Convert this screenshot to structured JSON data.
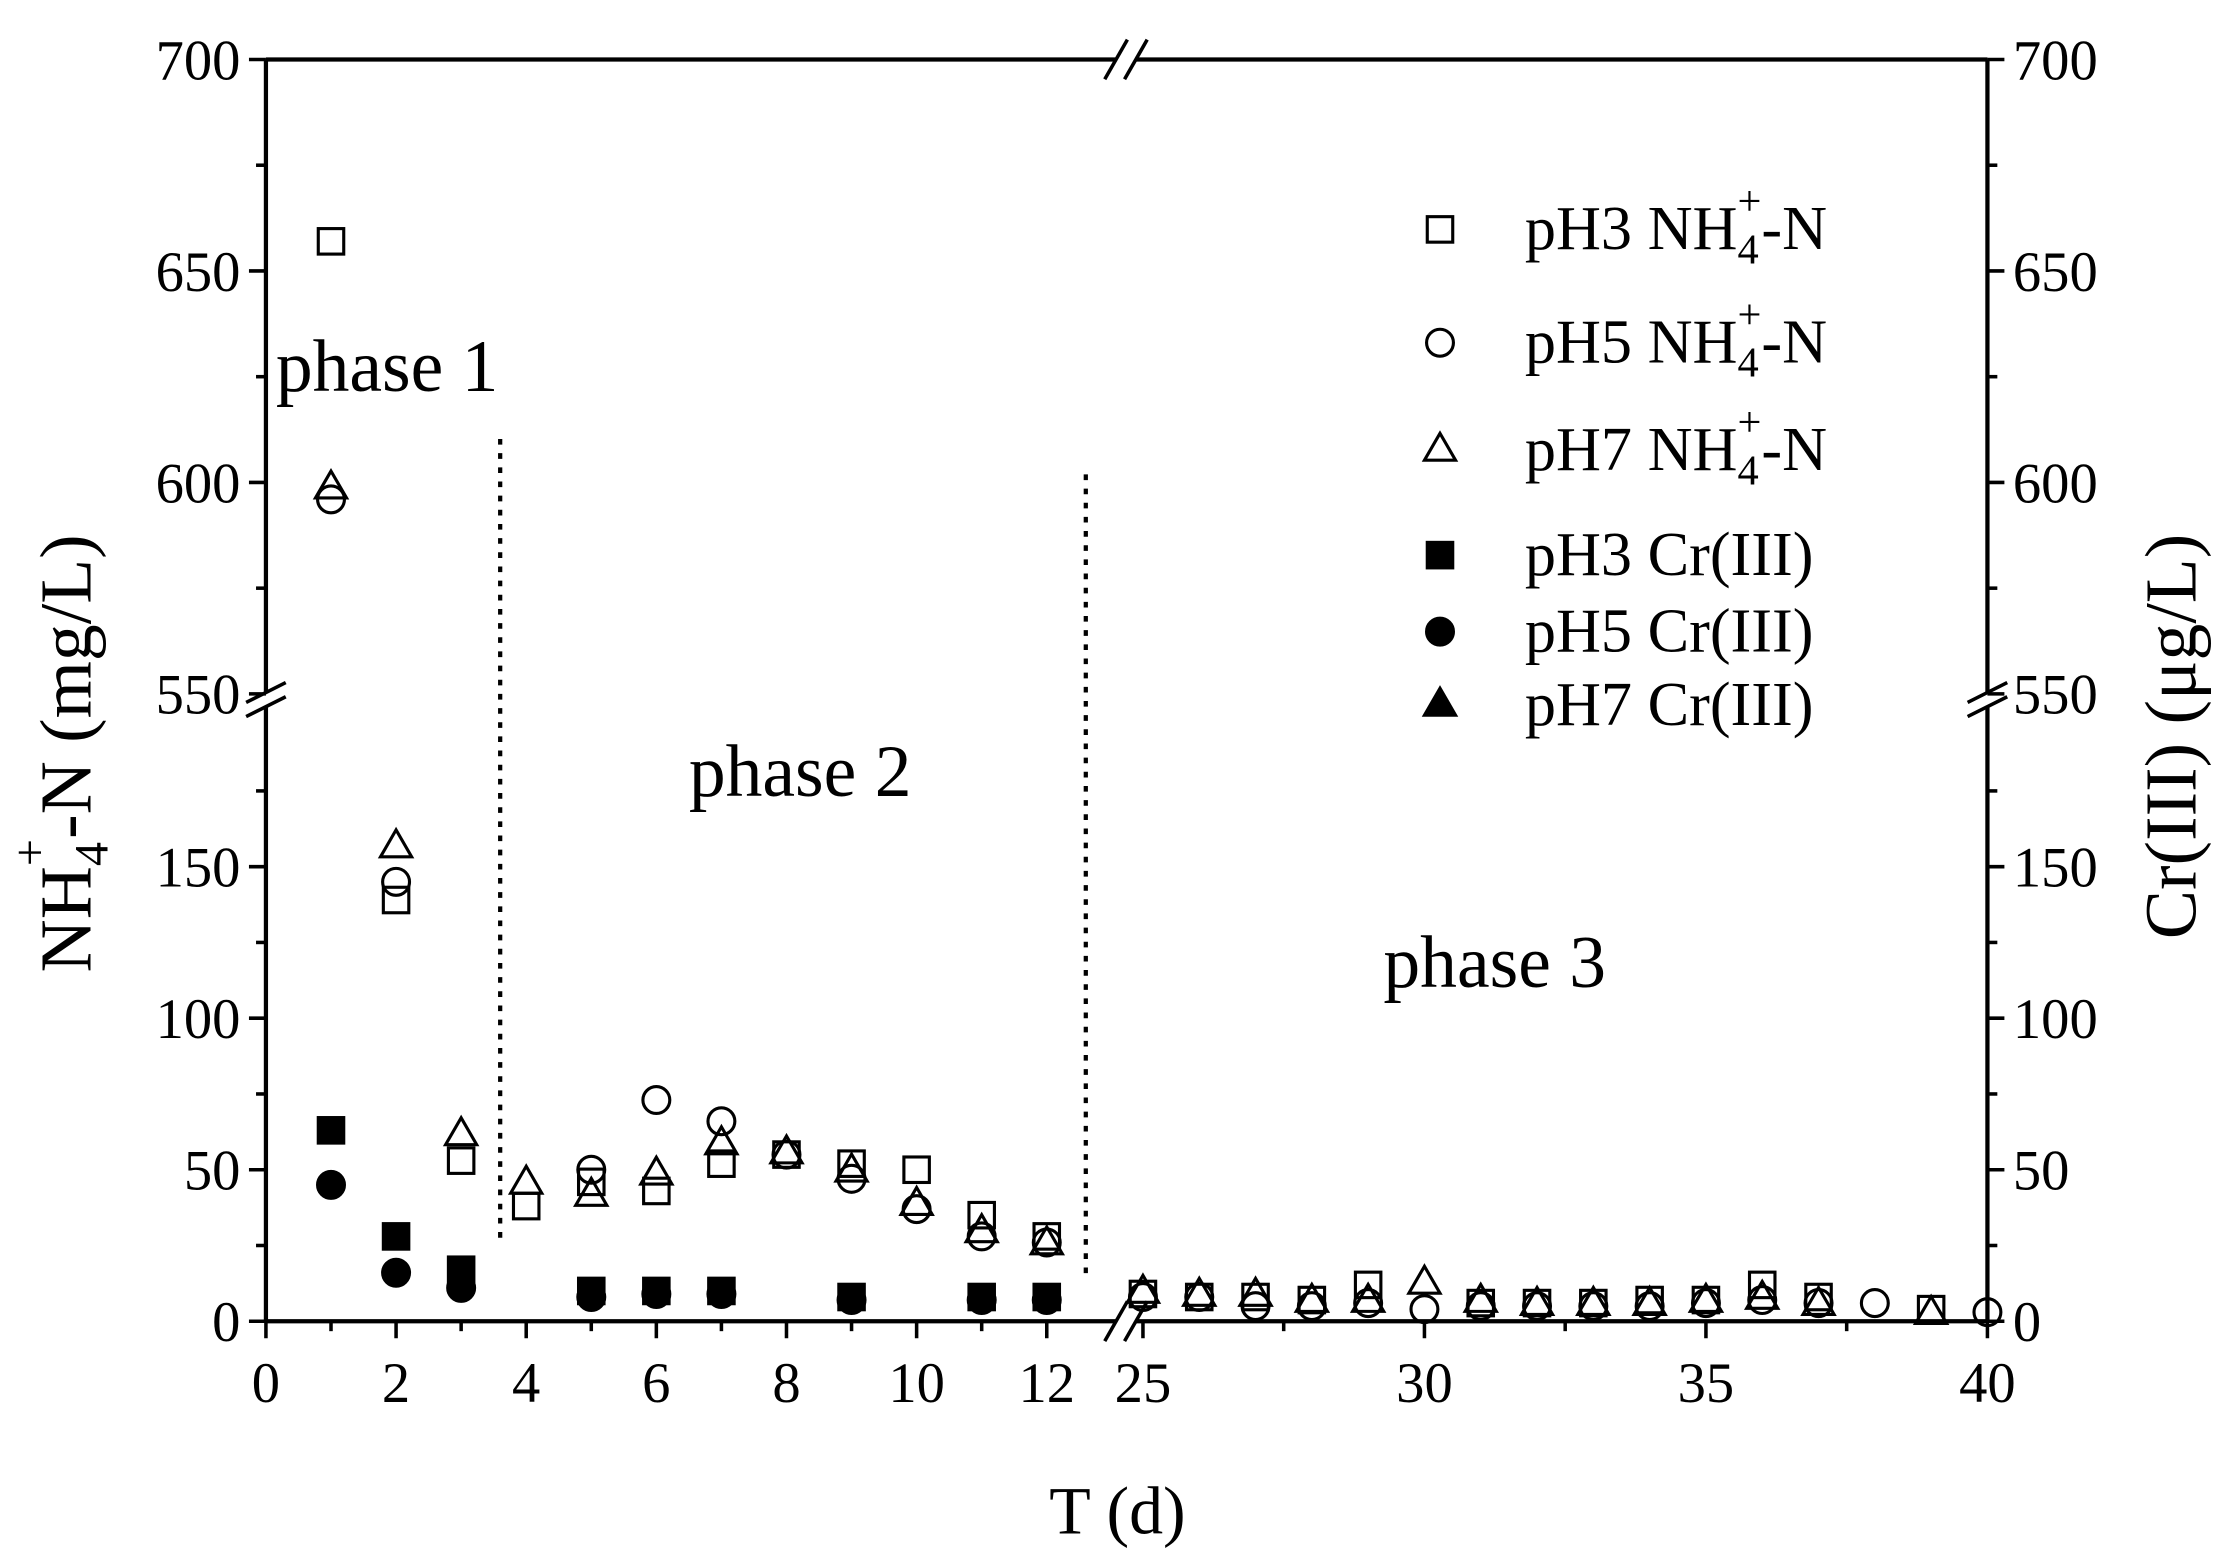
{
  "chart_data": {
    "type": "scatter",
    "x_axis": {
      "label": "T (d)",
      "segments": [
        {
          "range": [
            0,
            13
          ],
          "ticks": [
            0,
            2,
            4,
            6,
            8,
            10,
            12
          ],
          "minor_step": 1
        },
        {
          "range": [
            25,
            40
          ],
          "ticks": [
            25,
            30,
            35,
            40
          ],
          "minor_step": 2.5
        }
      ]
    },
    "y_axis_left": {
      "label": {
        "pre": "NH",
        "sub": "4",
        "sup": "+",
        "post": "-N (mg/L)"
      },
      "segments": [
        {
          "range": [
            0,
            200
          ],
          "ticks": [
            0,
            50,
            100,
            150
          ],
          "minor_step": 25
        },
        {
          "range": [
            550,
            700
          ],
          "ticks": [
            550,
            600,
            650,
            700
          ],
          "minor_step": 25
        }
      ]
    },
    "y_axis_right": {
      "label": "Cr(III) (μg/L)",
      "segments": [
        {
          "range": [
            0,
            200
          ],
          "ticks": [
            0,
            50,
            100,
            150
          ],
          "minor_step": 25
        },
        {
          "range": [
            550,
            700
          ],
          "ticks": [
            550,
            600,
            650,
            700
          ],
          "minor_step": 25
        }
      ]
    },
    "annotations": [
      "phase 1",
      "phase 2",
      "phase 3"
    ],
    "phase_dividers_x": [
      3.6,
      12.6
    ],
    "legend_placement": "top-right",
    "grid": false,
    "colors": {
      "ink": "#000000",
      "background": "#ffffff"
    },
    "series": [
      {
        "label": {
          "pre": "pH3 NH",
          "sub": "4",
          "sup": "+",
          "post": "-N"
        },
        "marker": "open-square-icon",
        "x": [
          1,
          2,
          3,
          4,
          5,
          6,
          7,
          8,
          9,
          10,
          11,
          12,
          25,
          26,
          27,
          28,
          29,
          31,
          32,
          33,
          34,
          35,
          36,
          37,
          39
        ],
        "y": [
          657,
          139,
          53,
          38,
          46,
          43,
          52,
          55,
          52,
          50,
          35,
          28,
          9,
          8,
          8,
          7,
          12,
          6,
          6,
          6,
          7,
          7,
          12,
          8,
          4
        ]
      },
      {
        "label": {
          "pre": "pH5 NH",
          "sub": "4",
          "sup": "+",
          "post": "-N"
        },
        "marker": "open-circle-icon",
        "x": [
          1,
          2,
          5,
          6,
          7,
          8,
          9,
          10,
          11,
          12,
          25,
          26,
          27,
          28,
          29,
          30,
          31,
          32,
          33,
          34,
          35,
          36,
          37,
          38,
          40
        ],
        "y": [
          596,
          145,
          50,
          73,
          66,
          55,
          47,
          37,
          28,
          26,
          8,
          8,
          5,
          5,
          6,
          4,
          5,
          5,
          5,
          5,
          6,
          7,
          6,
          6,
          3
        ]
      },
      {
        "label": {
          "pre": "pH7 NH",
          "sub": "4",
          "sup": "+",
          "post": "-N"
        },
        "marker": "open-triangle-icon",
        "x": [
          1,
          2,
          3,
          4,
          5,
          6,
          7,
          8,
          9,
          10,
          11,
          12,
          25,
          26,
          27,
          28,
          29,
          30,
          31,
          32,
          33,
          34,
          35,
          36,
          37,
          39
        ],
        "y": [
          599,
          157,
          62,
          46,
          42,
          49,
          59,
          56,
          50,
          39,
          30,
          26,
          10,
          9,
          9,
          7,
          7,
          13,
          7,
          6,
          6,
          6,
          7,
          8,
          6,
          3
        ]
      },
      {
        "label": {
          "pre": "pH3 Cr(III)"
        },
        "marker": "filled-square-icon",
        "x": [
          1,
          2,
          3,
          5,
          6,
          7,
          9,
          11,
          12
        ],
        "y": [
          63,
          28,
          17,
          10,
          10,
          10,
          8,
          8,
          8
        ]
      },
      {
        "label": {
          "pre": "pH5 Cr(III)"
        },
        "marker": "filled-circle-icon",
        "x": [
          1,
          2,
          3,
          5,
          6,
          7,
          9,
          11,
          12
        ],
        "y": [
          45,
          16,
          11,
          8,
          9,
          9,
          7,
          7,
          7
        ]
      },
      {
        "label": {
          "pre": "pH7 Cr(III)"
        },
        "marker": "filled-triangle-icon",
        "x": [],
        "y": []
      }
    ]
  }
}
